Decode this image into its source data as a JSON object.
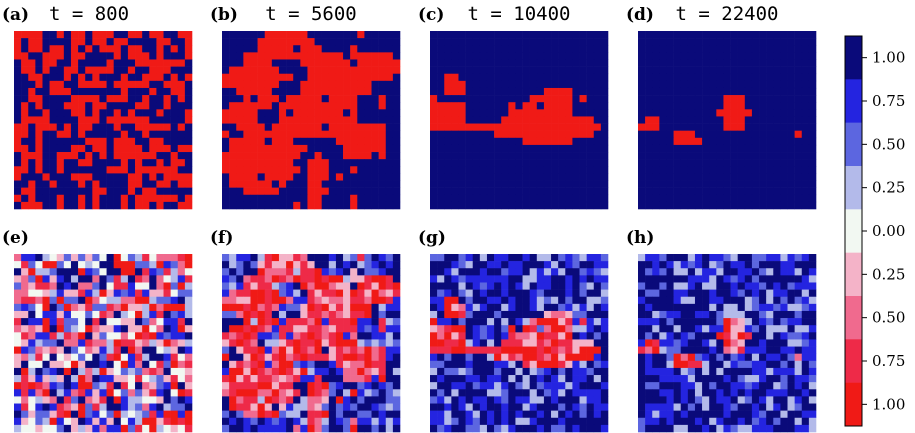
{
  "chart_data": {
    "type": "heatmap",
    "grid_size": 25,
    "colors": {
      "blue_full": "#0a0a7a",
      "blue_075": "#2424e0",
      "blue_050": "#5c66e0",
      "blue_025": "#b3baea",
      "neutral": "#f2f8f2",
      "red_025": "#f4b3c8",
      "red_050": "#f06a8e",
      "red_075": "#ee2a48",
      "red_full": "#f01a16"
    },
    "panels": [
      {
        "id": "a",
        "label": "(a)",
        "time": "t = 800",
        "row": 0,
        "col": 0,
        "kind": "discrete",
        "pattern": "random"
      },
      {
        "id": "b",
        "label": "(b)",
        "time": "t = 5600",
        "row": 0,
        "col": 1,
        "kind": "discrete",
        "pattern": "large"
      },
      {
        "id": "c",
        "label": "(c)",
        "time": "t = 10400",
        "row": 0,
        "col": 2,
        "kind": "discrete",
        "pattern": "band"
      },
      {
        "id": "d",
        "label": "(d)",
        "time": "t = 22400",
        "row": 0,
        "col": 3,
        "kind": "discrete",
        "pattern": "small"
      },
      {
        "id": "e",
        "label": "(e)",
        "time": "",
        "row": 1,
        "col": 0,
        "kind": "continuous",
        "pattern": "random"
      },
      {
        "id": "f",
        "label": "(f)",
        "time": "",
        "row": 1,
        "col": 1,
        "kind": "continuous",
        "pattern": "large"
      },
      {
        "id": "g",
        "label": "(g)",
        "time": "",
        "row": 1,
        "col": 2,
        "kind": "continuous",
        "pattern": "band"
      },
      {
        "id": "h",
        "label": "(h)",
        "time": "",
        "row": 1,
        "col": 3,
        "kind": "continuous",
        "pattern": "small"
      }
    ],
    "colorbar": {
      "levels": [
        {
          "label": "1.00",
          "color": "#0a0a7a"
        },
        {
          "label": "0.75",
          "color": "#2424e0"
        },
        {
          "label": "0.50",
          "color": "#5c66e0"
        },
        {
          "label": "0.25",
          "color": "#b3baea"
        },
        {
          "label": "0.00",
          "color": "#f2f8f2"
        },
        {
          "label": "0.25",
          "color": "#f4b3c8"
        },
        {
          "label": "0.50",
          "color": "#f06a8e"
        },
        {
          "label": "0.75",
          "color": "#ee2a48"
        },
        {
          "label": "1.00",
          "color": "#f01a16"
        }
      ]
    }
  }
}
